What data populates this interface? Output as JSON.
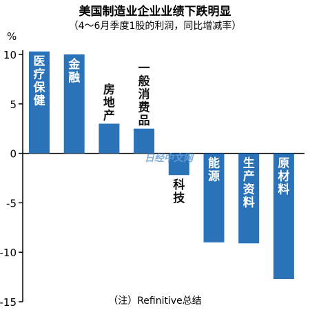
{
  "chart_data": {
    "type": "bar",
    "title": "美国制造业企业业绩下跌明显",
    "subtitle": "（4～6月季度1股的利润，同比增减率）",
    "ylabel": "%",
    "ylim": [
      -15,
      10
    ],
    "yticks": [
      10,
      5,
      0,
      -5,
      -10,
      -15
    ],
    "categories": [
      "医疗保健",
      "金融",
      "房地产",
      "一般消费品",
      "科技",
      "能源",
      "生产资料",
      "原材料"
    ],
    "values": [
      10.3,
      10.0,
      3.0,
      2.5,
      -2.2,
      -9.0,
      -9.1,
      -12.7
    ],
    "label_inside": [
      true,
      true,
      false,
      false,
      false,
      true,
      true,
      true
    ],
    "bar_color": "#2a73b8",
    "grid": false
  },
  "watermark": "日经中文网",
  "source_note": "（注）Refinitive总结"
}
